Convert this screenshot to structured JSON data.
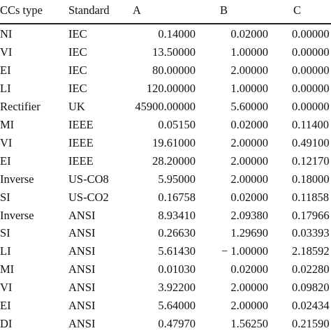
{
  "headers": {
    "type": "CCs type",
    "standard": "Standard",
    "a": "A",
    "b": "B",
    "c": "C"
  },
  "rows": [
    {
      "type": "NI",
      "standard": "IEC",
      "a": "0.14000",
      "b": "0.02000",
      "c": "0.00000"
    },
    {
      "type": "VI",
      "standard": "IEC",
      "a": "13.50000",
      "b": "1.00000",
      "c": "0.00000"
    },
    {
      "type": "EI",
      "standard": "IEC",
      "a": "80.00000",
      "b": "2.00000",
      "c": "0.00000"
    },
    {
      "type": "LI",
      "standard": "IEC",
      "a": "120.00000",
      "b": "1.00000",
      "c": "0.00000"
    },
    {
      "type": "Rectifier",
      "standard": "UK",
      "a": "45900.00000",
      "b": "5.60000",
      "c": "0.00000"
    },
    {
      "type": "MI",
      "standard": "IEEE",
      "a": "0.05150",
      "b": "0.02000",
      "c": "0.11400"
    },
    {
      "type": "VI",
      "standard": "IEEE",
      "a": "19.61000",
      "b": "2.00000",
      "c": "0.49100"
    },
    {
      "type": "EI",
      "standard": "IEEE",
      "a": "28.20000",
      "b": "2.00000",
      "c": "0.12170"
    },
    {
      "type": "Inverse",
      "standard": "US-CO8",
      "a": "5.95000",
      "b": "2.00000",
      "c": "0.18000"
    },
    {
      "type": "SI",
      "standard": "US-CO2",
      "a": "0.16758",
      "b": "0.02000",
      "c": "0.11858"
    },
    {
      "type": "Inverse",
      "standard": "ANSI",
      "a": "8.93410",
      "b": "2.09380",
      "c": "0.17966"
    },
    {
      "type": "SI",
      "standard": "ANSI",
      "a": "0.26630",
      "b": "1.29690",
      "c": "0.03393"
    },
    {
      "type": "LI",
      "standard": "ANSI",
      "a": "5.61430",
      "b": "− 1.00000",
      "c": "2.18592"
    },
    {
      "type": "MI",
      "standard": "ANSI",
      "a": "0.01030",
      "b": "0.02000",
      "c": "0.02280"
    },
    {
      "type": "VI",
      "standard": "ANSI",
      "a": "3.92200",
      "b": "2.00000",
      "c": "0.09820"
    },
    {
      "type": "EI",
      "standard": "ANSI",
      "a": "5.64000",
      "b": "2.00000",
      "c": "0.02434"
    },
    {
      "type": "DI",
      "standard": "ANSI",
      "a": "0.47970",
      "b": "1.56250",
      "c": "0.21590"
    }
  ]
}
